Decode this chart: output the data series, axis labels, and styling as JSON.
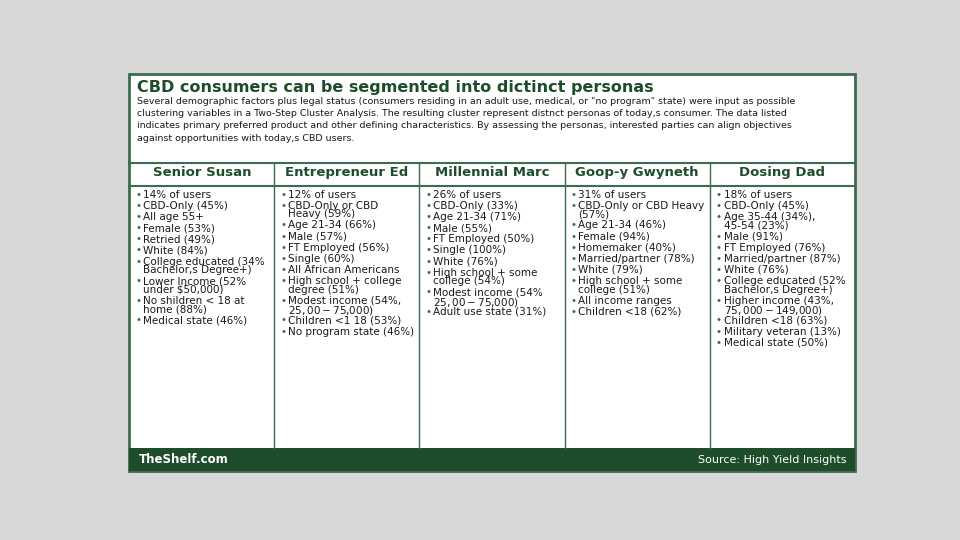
{
  "title": "CBD consumers can be segmented into dictinct personas",
  "subtitle": "Several demographic factors plus legal status (consumers residing in an adult use, medical, or \"no program\" state) were input as possible\nclustering variables in a Two-Step Cluster Analysis. The resulting cluster represent distnct personas of today,s consumer. The data listed\nindicates primary preferred product and other defining characteristics. By assessing the personas, interested parties can align objectives\nagainst opportunities with today,s CBD users.",
  "footer_left": "TheShelf.com",
  "footer_right": "Source: High Yield Insights",
  "outer_bg": "#d8d8d8",
  "inner_bg": "#ffffff",
  "border_color": "#3d6b4f",
  "footer_bg": "#1e4d2b",
  "text_color": "#1a1a1a",
  "dark_green": "#1e4d2b",
  "medium_green": "#3d6b4f",
  "header_divider_color": "#3d6b4f",
  "personas": [
    {
      "name": "Senior Susan",
      "bullets": [
        "14% of users",
        "CBD-Only (45%)",
        "All age 55+",
        "Female (53%)",
        "Retried (49%)",
        "White (84%)",
        "College educated (34%\nBachelor,s Degree+)",
        "Lower Income (52%\nunder $50,000)",
        "No shildren < 18 at\nhome (88%)",
        "Medical state (46%)"
      ]
    },
    {
      "name": "Entrepreneur Ed",
      "bullets": [
        "12% of users",
        "CBD-Only or CBD\nHeavy (59%)",
        "Age 21-34 (66%)",
        "Male (57%)",
        "FT Employed (56%)",
        "Single (60%)",
        "All African Americans",
        "High school + college\ndegree (51%)",
        "Modest income (54%,\n$25,00-$75,000)",
        "Children <1 18 (53%)",
        "No program state (46%)"
      ]
    },
    {
      "name": "Millennial Marc",
      "bullets": [
        "26% of users",
        "CBD-Only (33%)",
        "Age 21-34 (71%)",
        "Male (55%)",
        "FT Employed (50%)",
        "Single (100%)",
        "White (76%)",
        "High school + some\ncollege (54%)",
        "Modest income (54%\n$25,00-$75,000)",
        "Adult use state (31%)"
      ]
    },
    {
      "name": "Goop-y Gwyneth",
      "bullets": [
        "31% of users",
        "CBD-Only or CBD Heavy\n(57%)",
        "Age 21-34 (46%)",
        "Female (94%)",
        "Homemaker (40%)",
        "Married/partner (78%)",
        "White (79%)",
        "High school + some\ncollege (51%)",
        "All income ranges",
        "Children <18 (62%)"
      ]
    },
    {
      "name": "Dosing Dad",
      "bullets": [
        "18% of users",
        "CBD-Only (45%)",
        "Age 35-44 (34%),\n45-54 (23%)",
        "Male (91%)",
        "FT Employed (76%)",
        "Married/partner (87%)",
        "White (76%)",
        "College educated (52%\nBachelor,s Degree+)",
        "Higher income (43%,\n$75,000-$149,000)",
        "Children <18 (63%)",
        "Military veteran (13%)",
        "Medical state (50%)"
      ]
    }
  ]
}
